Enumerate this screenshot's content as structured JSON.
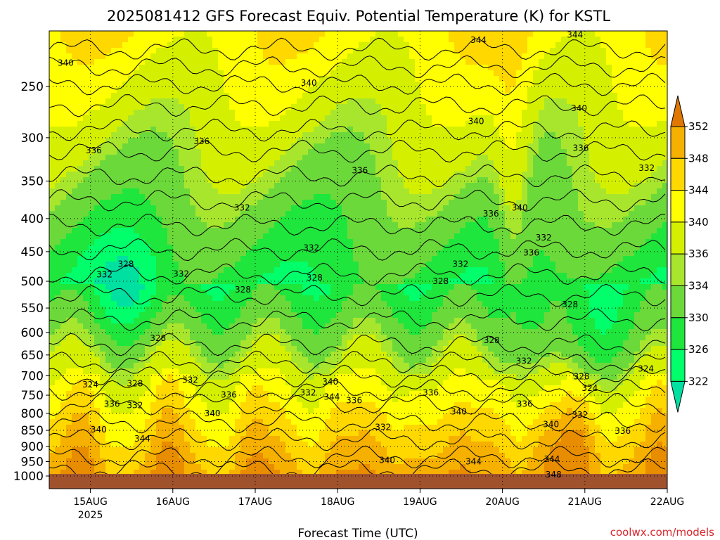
{
  "chart_data": {
    "type": "heatmap",
    "title": "2025081412 GFS Forecast Equiv. Potential Temperature (K) for KSTL",
    "xlabel": "Forecast Time (UTC)",
    "ylabel": "",
    "credit": "coolwx.com/models",
    "x_ticks": [
      {
        "label": "15AUG",
        "sub": "2025",
        "day": 15
      },
      {
        "label": "16AUG",
        "sub": "",
        "day": 16
      },
      {
        "label": "17AUG",
        "sub": "",
        "day": 17
      },
      {
        "label": "18AUG",
        "sub": "",
        "day": 18
      },
      {
        "label": "19AUG",
        "sub": "",
        "day": 19
      },
      {
        "label": "20AUG",
        "sub": "",
        "day": 20
      },
      {
        "label": "21AUG",
        "sub": "",
        "day": 21
      },
      {
        "label": "22AUG",
        "sub": "",
        "day": 22
      }
    ],
    "x_range_days": [
      14.5,
      22
    ],
    "y_ticks": [
      250,
      300,
      350,
      400,
      450,
      500,
      550,
      600,
      650,
      700,
      750,
      800,
      850,
      900,
      950,
      1000
    ],
    "y_range_hpa": [
      200,
      1000
    ],
    "y_scale": "log-pressure (inverted)",
    "grid": true,
    "colorbar": {
      "levels": [
        322,
        326,
        330,
        334,
        336,
        340,
        344,
        348,
        352
      ],
      "colors": [
        "#00ff6a",
        "#1ee63c",
        "#6cd93a",
        "#a8e62e",
        "#d4f000",
        "#ffff00",
        "#ffd800",
        "#f6b000",
        "#e88c00"
      ],
      "under_color": "#00e0a0",
      "over_color": "#e07800"
    },
    "surface_color": "#a0522d",
    "contour_labels": [
      {
        "text": "340",
        "day": 14.7,
        "p": 230
      },
      {
        "text": "340",
        "day": 17.65,
        "p": 247
      },
      {
        "text": "344",
        "day": 19.71,
        "p": 212
      },
      {
        "text": "344",
        "day": 20.88,
        "p": 208
      },
      {
        "text": "340",
        "day": 20.93,
        "p": 270
      },
      {
        "text": "340",
        "day": 19.68,
        "p": 283
      },
      {
        "text": "336",
        "day": 15.04,
        "p": 314
      },
      {
        "text": "336",
        "day": 16.35,
        "p": 304
      },
      {
        "text": "336",
        "day": 18.27,
        "p": 337
      },
      {
        "text": "336",
        "day": 20.95,
        "p": 311
      },
      {
        "text": "332",
        "day": 21.75,
        "p": 334
      },
      {
        "text": "332",
        "day": 16.84,
        "p": 385
      },
      {
        "text": "340",
        "day": 20.21,
        "p": 385
      },
      {
        "text": "336",
        "day": 19.86,
        "p": 393
      },
      {
        "text": "332",
        "day": 20.5,
        "p": 428
      },
      {
        "text": "336",
        "day": 20.35,
        "p": 452
      },
      {
        "text": "332",
        "day": 17.68,
        "p": 444
      },
      {
        "text": "332",
        "day": 19.49,
        "p": 470
      },
      {
        "text": "332",
        "day": 15.17,
        "p": 488
      },
      {
        "text": "328",
        "day": 15.43,
        "p": 470
      },
      {
        "text": "332",
        "day": 16.1,
        "p": 487
      },
      {
        "text": "328",
        "day": 17.72,
        "p": 494
      },
      {
        "text": "328",
        "day": 16.85,
        "p": 515
      },
      {
        "text": "328",
        "day": 19.25,
        "p": 500
      },
      {
        "text": "328",
        "day": 20.82,
        "p": 543
      },
      {
        "text": "328",
        "day": 15.82,
        "p": 612
      },
      {
        "text": "328",
        "day": 19.87,
        "p": 617
      },
      {
        "text": "332",
        "day": 20.26,
        "p": 664
      },
      {
        "text": "324",
        "day": 21.74,
        "p": 683
      },
      {
        "text": "328",
        "day": 20.96,
        "p": 702
      },
      {
        "text": "324",
        "day": 15.0,
        "p": 722
      },
      {
        "text": "328",
        "day": 15.54,
        "p": 720
      },
      {
        "text": "332",
        "day": 16.21,
        "p": 711
      },
      {
        "text": "324",
        "day": 21.06,
        "p": 731
      },
      {
        "text": "340",
        "day": 17.91,
        "p": 715
      },
      {
        "text": "336",
        "day": 16.68,
        "p": 749
      },
      {
        "text": "332",
        "day": 17.64,
        "p": 743
      },
      {
        "text": "344",
        "day": 17.93,
        "p": 755
      },
      {
        "text": "336",
        "day": 18.2,
        "p": 764
      },
      {
        "text": "336",
        "day": 19.13,
        "p": 743
      },
      {
        "text": "336",
        "day": 15.26,
        "p": 774
      },
      {
        "text": "332",
        "day": 15.54,
        "p": 778
      },
      {
        "text": "336",
        "day": 20.27,
        "p": 774
      },
      {
        "text": "340",
        "day": 16.48,
        "p": 800
      },
      {
        "text": "340",
        "day": 19.47,
        "p": 795
      },
      {
        "text": "332",
        "day": 20.94,
        "p": 804
      },
      {
        "text": "340",
        "day": 20.59,
        "p": 832
      },
      {
        "text": "336",
        "day": 21.46,
        "p": 852
      },
      {
        "text": "340",
        "day": 15.1,
        "p": 848
      },
      {
        "text": "332",
        "day": 18.55,
        "p": 840
      },
      {
        "text": "344",
        "day": 15.63,
        "p": 876
      },
      {
        "text": "340",
        "day": 18.6,
        "p": 945
      },
      {
        "text": "344",
        "day": 19.65,
        "p": 950
      },
      {
        "text": "344",
        "day": 20.6,
        "p": 942
      },
      {
        "text": "348",
        "day": 20.62,
        "p": 995
      }
    ]
  }
}
